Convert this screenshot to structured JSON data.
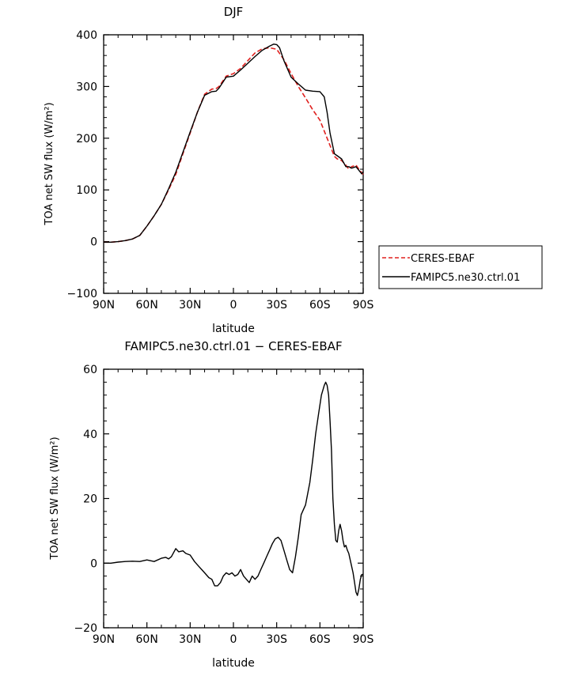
{
  "chart_data": [
    {
      "type": "line",
      "title": "DJF",
      "xlabel": "latitude",
      "ylabel": "TOA net SW flux (W/m²)",
      "x_ticks": [
        {
          "v": 90,
          "label": "90N"
        },
        {
          "v": 60,
          "label": "60N"
        },
        {
          "v": 30,
          "label": "30N"
        },
        {
          "v": 0,
          "label": "0"
        },
        {
          "v": -30,
          "label": "30S"
        },
        {
          "v": -60,
          "label": "60S"
        },
        {
          "v": -90,
          "label": "90S"
        }
      ],
      "xlim": [
        90,
        -90
      ],
      "ylim": [
        -100,
        400
      ],
      "y_ticks": [
        -100,
        0,
        100,
        200,
        300,
        400
      ],
      "legend": "outside-right",
      "series": [
        {
          "name": "CERES-EBAF",
          "color": "#e0201e",
          "dash": "dashed",
          "x": [
            90,
            85,
            80,
            75,
            70,
            65,
            60,
            55,
            50,
            45,
            40,
            35,
            30,
            25,
            20,
            15,
            12,
            10,
            5,
            0,
            -5,
            -10,
            -15,
            -20,
            -25,
            -30,
            -35,
            -40,
            -45,
            -50,
            -55,
            -60,
            -65,
            -70,
            -72,
            -75,
            -78,
            -80,
            -82,
            -85,
            -87,
            -90
          ],
          "y": [
            -1,
            -1,
            0,
            2,
            5,
            12,
            30,
            50,
            72,
            100,
            130,
            170,
            210,
            250,
            285,
            295,
            296,
            300,
            320,
            325,
            335,
            350,
            365,
            373,
            375,
            372,
            352,
            325,
            300,
            278,
            255,
            235,
            200,
            165,
            160,
            157,
            148,
            140,
            145,
            148,
            140,
            130
          ]
        },
        {
          "name": "FAMIPC5.ne30.ctrl.01",
          "color": "#000000",
          "dash": "solid",
          "x": [
            90,
            85,
            80,
            75,
            70,
            65,
            60,
            55,
            50,
            45,
            40,
            35,
            30,
            25,
            20,
            15,
            12,
            10,
            5,
            0,
            -5,
            -10,
            -15,
            -20,
            -25,
            -28,
            -30,
            -32,
            -35,
            -40,
            -45,
            -50,
            -55,
            -60,
            -63,
            -65,
            -67,
            -70,
            -72,
            -75,
            -78,
            -80,
            -82,
            -85,
            -87,
            -89,
            -90
          ],
          "y": [
            -1,
            -1,
            0,
            2,
            5,
            12,
            30,
            50,
            72,
            102,
            134,
            173,
            212,
            250,
            283,
            290,
            291,
            297,
            318,
            320,
            332,
            345,
            358,
            370,
            378,
            382,
            381,
            375,
            350,
            318,
            305,
            293,
            291,
            290,
            280,
            250,
            210,
            170,
            166,
            160,
            145,
            145,
            142,
            145,
            138,
            131,
            135
          ]
        }
      ]
    },
    {
      "type": "line",
      "title": "FAMIPC5.ne30.ctrl.01 − CERES-EBAF",
      "xlabel": "latitude",
      "ylabel": "TOA net SW flux (W/m²)",
      "x_ticks": [
        {
          "v": 90,
          "label": "90N"
        },
        {
          "v": 60,
          "label": "60N"
        },
        {
          "v": 30,
          "label": "30N"
        },
        {
          "v": 0,
          "label": "0"
        },
        {
          "v": -30,
          "label": "30S"
        },
        {
          "v": -60,
          "label": "60S"
        },
        {
          "v": -90,
          "label": "90S"
        }
      ],
      "xlim": [
        90,
        -90
      ],
      "ylim": [
        -20,
        60
      ],
      "y_ticks": [
        -20,
        0,
        20,
        40,
        60
      ],
      "series": [
        {
          "color": "#000000",
          "x": [
            90,
            85,
            80,
            75,
            70,
            65,
            60,
            55,
            50,
            47,
            45,
            43,
            40,
            38,
            35,
            33,
            30,
            27,
            25,
            22,
            20,
            17,
            15,
            13,
            11,
            9,
            7,
            5,
            3,
            1,
            -1,
            -3,
            -5,
            -7,
            -9,
            -11,
            -13,
            -15,
            -17,
            -19,
            -21,
            -23,
            -25,
            -27,
            -29,
            -31,
            -33,
            -35,
            -37,
            -39,
            -41,
            -43,
            -45,
            -47,
            -50,
            -53,
            -55,
            -57,
            -59,
            -61,
            -63,
            -64,
            -65,
            -66,
            -67,
            -68,
            -69,
            -70,
            -71,
            -72,
            -73,
            -74,
            -75,
            -76,
            -77,
            -78,
            -79,
            -80,
            -81,
            -82,
            -83,
            -84,
            -85,
            -86,
            -87,
            -88,
            -89,
            -90
          ],
          "y": [
            0,
            0,
            0.3,
            0.5,
            0.6,
            0.5,
            1.0,
            0.5,
            1.5,
            1.8,
            1.3,
            2.0,
            4.5,
            3.5,
            3.8,
            3.0,
            2.5,
            0.5,
            -0.5,
            -2.0,
            -3.0,
            -4.5,
            -5.0,
            -7.0,
            -7.0,
            -6.0,
            -4.0,
            -3.0,
            -3.5,
            -3.0,
            -4.0,
            -3.5,
            -2.0,
            -4.0,
            -5.0,
            -6.0,
            -4.0,
            -5.0,
            -4.0,
            -2.0,
            0.0,
            2.0,
            4.0,
            6.0,
            7.5,
            8.0,
            7.0,
            4.0,
            1.0,
            -2.0,
            -3.0,
            2.0,
            8.0,
            15.0,
            18.0,
            25.0,
            32.0,
            40.0,
            46.0,
            52.0,
            55.0,
            56.0,
            55.0,
            52.0,
            44.0,
            35.0,
            20.0,
            12.0,
            7.0,
            6.5,
            10.0,
            12.0,
            10.0,
            7.0,
            5.0,
            5.5,
            4.0,
            3.0,
            1.0,
            -1.0,
            -3.0,
            -6.0,
            -9.0,
            -10.0,
            -8.0,
            -5.0,
            -3.5,
            -3.5
          ]
        }
      ]
    }
  ]
}
